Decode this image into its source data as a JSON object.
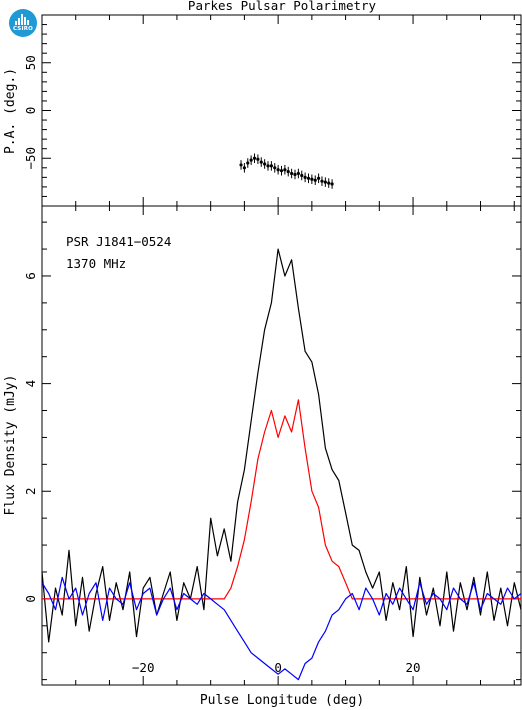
{
  "title": "Parkes Pulsar Polarimetry",
  "logo_text": "CSIRO",
  "colors": {
    "total": "#000000",
    "linear": "#ff0000",
    "circular": "#0000ff",
    "pa_points": "#000000"
  },
  "chart_data": [
    {
      "type": "scatter",
      "panel": "position-angle",
      "ylabel": "P.A. (deg.)",
      "xlim": [
        -35,
        36
      ],
      "ylim": [
        -100,
        100
      ],
      "yticks": [
        -50,
        0,
        50
      ],
      "error_bar_deg": 5,
      "x": [
        -5.5,
        -5.0,
        -4.5,
        -4.0,
        -3.5,
        -3.0,
        -2.5,
        -2.0,
        -1.5,
        -1.0,
        -0.5,
        0.0,
        0.5,
        1.0,
        1.5,
        2.0,
        2.5,
        3.0,
        3.5,
        4.0,
        4.5,
        5.0,
        5.5,
        6.0,
        6.5,
        7.0,
        7.5,
        8.0
      ],
      "y": [
        -57,
        -60,
        -55,
        -52,
        -50,
        -51,
        -54,
        -56,
        -58,
        -58,
        -60,
        -62,
        -63,
        -62,
        -64,
        -66,
        -67,
        -66,
        -68,
        -70,
        -71,
        -72,
        -73,
        -71,
        -74,
        -75,
        -76,
        -77
      ]
    },
    {
      "type": "line",
      "panel": "profile",
      "xlabel": "Pulse Longitude (deg)",
      "ylabel": "Flux Density (mJy)",
      "annotations": [
        "PSR J1841−0524",
        "1370 MHz"
      ],
      "xlim": [
        -35,
        36
      ],
      "ylim": [
        -1.6,
        7.3
      ],
      "xticks": [
        -20,
        0,
        20
      ],
      "yticks": [
        0,
        2,
        4,
        6
      ],
      "x": [
        -35,
        -34,
        -33,
        -32,
        -31,
        -30,
        -29,
        -28,
        -27,
        -26,
        -25,
        -24,
        -23,
        -22,
        -21,
        -20,
        -19,
        -18,
        -17,
        -16,
        -15,
        -14,
        -13,
        -12,
        -11,
        -10,
        -9,
        -8,
        -7,
        -6,
        -5,
        -4,
        -3,
        -2,
        -1,
        0,
        1,
        2,
        3,
        4,
        5,
        6,
        7,
        8,
        9,
        10,
        11,
        12,
        13,
        14,
        15,
        16,
        17,
        18,
        19,
        20,
        21,
        22,
        23,
        24,
        25,
        26,
        27,
        28,
        29,
        30,
        31,
        32,
        33,
        34,
        35,
        36
      ],
      "series": [
        {
          "color_key": "total",
          "values": [
            0.5,
            -0.8,
            0.2,
            -0.3,
            0.9,
            -0.5,
            0.4,
            -0.6,
            0.1,
            0.6,
            -0.4,
            0.3,
            -0.2,
            0.5,
            -0.7,
            0.2,
            0.4,
            -0.3,
            0.1,
            0.5,
            -0.4,
            0.3,
            0.0,
            0.6,
            -0.2,
            1.5,
            0.8,
            1.3,
            0.7,
            1.8,
            2.4,
            3.3,
            4.2,
            5.0,
            5.5,
            6.5,
            6.0,
            6.3,
            5.4,
            4.6,
            4.4,
            3.8,
            2.8,
            2.4,
            2.2,
            1.6,
            1.0,
            0.9,
            0.5,
            0.2,
            0.5,
            -0.4,
            0.3,
            -0.2,
            0.6,
            -0.7,
            0.4,
            -0.3,
            0.2,
            -0.5,
            0.5,
            -0.6,
            0.3,
            -0.2,
            0.4,
            -0.3,
            0.5,
            -0.4,
            0.2,
            -0.5,
            0.3,
            -0.2
          ]
        },
        {
          "color_key": "linear",
          "values": [
            0.0,
            0.0,
            0.0,
            0.0,
            0.0,
            0.0,
            0.0,
            0.0,
            0.0,
            0.0,
            0.0,
            0.0,
            0.0,
            0.0,
            0.0,
            0.0,
            0.0,
            0.0,
            0.0,
            0.0,
            0.0,
            0.0,
            0.0,
            0.0,
            0.0,
            0.0,
            0.0,
            0.0,
            0.2,
            0.6,
            1.1,
            1.8,
            2.6,
            3.1,
            3.5,
            3.0,
            3.4,
            3.1,
            3.7,
            2.8,
            2.0,
            1.7,
            1.0,
            0.7,
            0.6,
            0.3,
            0.0,
            0.0,
            0.0,
            0.0,
            0.0,
            0.0,
            0.0,
            0.0,
            0.0,
            0.0,
            0.0,
            0.0,
            0.0,
            0.0,
            0.0,
            0.0,
            0.0,
            0.0,
            0.0,
            0.0,
            0.0,
            0.0,
            0.0,
            0.0,
            0.0,
            0.0
          ]
        },
        {
          "color_key": "circular",
          "values": [
            0.3,
            0.1,
            -0.2,
            0.4,
            0.0,
            0.2,
            -0.3,
            0.1,
            0.3,
            -0.4,
            0.2,
            0.0,
            -0.1,
            0.3,
            -0.2,
            0.1,
            0.2,
            -0.3,
            0.0,
            0.2,
            -0.2,
            0.1,
            0.0,
            -0.1,
            0.1,
            0.0,
            -0.1,
            -0.2,
            -0.4,
            -0.6,
            -0.8,
            -1.0,
            -1.1,
            -1.2,
            -1.3,
            -1.4,
            -1.3,
            -1.4,
            -1.5,
            -1.2,
            -1.1,
            -0.8,
            -0.6,
            -0.3,
            -0.2,
            0.0,
            0.1,
            -0.2,
            0.2,
            0.0,
            -0.3,
            0.1,
            -0.1,
            0.2,
            0.0,
            -0.2,
            0.3,
            -0.1,
            0.1,
            0.0,
            -0.2,
            0.2,
            0.0,
            -0.1,
            0.3,
            -0.2,
            0.1,
            0.0,
            -0.1,
            0.2,
            0.0,
            0.1
          ]
        }
      ]
    }
  ]
}
